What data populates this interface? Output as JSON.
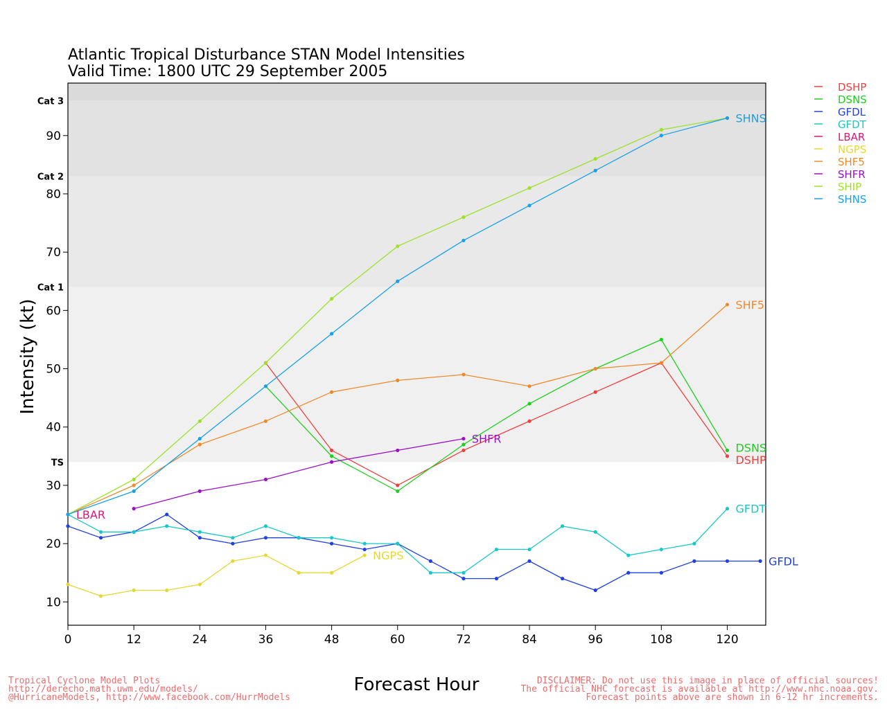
{
  "title_line1": "Atlantic Tropical Disturbance STAN Model Intensities",
  "title_line2": "Valid Time: 1800 UTC 29 September 2005",
  "footer_left": [
    "Tropical Cyclone Model Plots",
    "http://derecho.math.uwm.edu/models/",
    "@HurricaneModels, http://www.facebook.com/HurrModels"
  ],
  "footer_right": [
    "DISCLAIMER: Do not use this image in place of official sources!",
    "The official NHC forecast is available at http://www.nhc.noaa.gov.",
    "Forecast points above are shown in 6-12 hr increments."
  ],
  "chart_data": {
    "type": "line",
    "xlabel": "Forecast Hour",
    "ylabel": "Intensity (kt)",
    "xlim": [
      0,
      127
    ],
    "ylim": [
      6,
      99
    ],
    "x_ticks": [
      0,
      12,
      24,
      36,
      48,
      60,
      72,
      84,
      96,
      108,
      120
    ],
    "y_ticks": [
      10,
      20,
      30,
      40,
      50,
      60,
      70,
      80,
      90
    ],
    "grid": false,
    "legend_position": "right",
    "category_bands": [
      {
        "label": "TS",
        "from": 34,
        "to": 64,
        "color": "#f0f0f0"
      },
      {
        "label": "Cat 1",
        "from": 64,
        "to": 83,
        "color": "#e9e9e9"
      },
      {
        "label": "Cat 2",
        "from": 83,
        "to": 96,
        "color": "#e2e2e2"
      },
      {
        "label": "Cat 3",
        "from": 96,
        "to": 99,
        "color": "#dadada"
      }
    ],
    "series": [
      {
        "name": "DSHP",
        "color": "#ef4040",
        "x": [
          36,
          48,
          60,
          72,
          84,
          96,
          108,
          120
        ],
        "y": [
          51,
          36,
          30,
          36,
          41,
          46,
          51,
          35
        ],
        "end_label": "DSHP"
      },
      {
        "name": "DSNS",
        "color": "#1ecf1e",
        "x": [
          36,
          48,
          60,
          72,
          84,
          96,
          108,
          120
        ],
        "y": [
          47,
          35,
          29,
          37,
          44,
          50,
          55,
          36
        ],
        "end_label": "DSNS"
      },
      {
        "name": "GFDL",
        "color": "#2040e0",
        "x": [
          0,
          6,
          12,
          18,
          24,
          30,
          36,
          42,
          48,
          54,
          60,
          66,
          72,
          78,
          84,
          90,
          96,
          102,
          108,
          114,
          120,
          126
        ],
        "y": [
          23,
          21,
          22,
          25,
          21,
          20,
          21,
          21,
          20,
          19,
          20,
          17,
          14,
          14,
          17,
          14,
          12,
          15,
          15,
          17,
          17,
          17
        ],
        "end_label": "GFDL"
      },
      {
        "name": "GFDT",
        "color": "#18c8c8",
        "x": [
          0,
          6,
          12,
          18,
          24,
          30,
          36,
          42,
          48,
          54,
          60,
          66,
          72,
          78,
          84,
          90,
          96,
          102,
          108,
          114,
          120
        ],
        "y": [
          25,
          22,
          22,
          23,
          22,
          21,
          23,
          21,
          21,
          20,
          20,
          15,
          15,
          19,
          19,
          23,
          22,
          18,
          19,
          20,
          26
        ],
        "end_label": "GFDT"
      },
      {
        "name": "LBAR",
        "color": "#e8107a",
        "x": [
          0
        ],
        "y": [
          25
        ],
        "end_label": "LBAR"
      },
      {
        "name": "NGPS",
        "color": "#e6d832",
        "x": [
          0,
          6,
          12,
          18,
          24,
          30,
          36,
          42,
          48,
          54
        ],
        "y": [
          13,
          11,
          12,
          12,
          13,
          17,
          18,
          15,
          15,
          18
        ],
        "end_label": "NGPS"
      },
      {
        "name": "SHF5",
        "color": "#ee8a2a",
        "x": [
          0,
          12,
          24,
          36,
          48,
          60,
          72,
          84,
          96,
          108,
          120
        ],
        "y": [
          25,
          30,
          37,
          41,
          46,
          48,
          49,
          47,
          50,
          51,
          61
        ],
        "end_label": "SHF5"
      },
      {
        "name": "SHFR",
        "color": "#9a10c8",
        "x": [
          12,
          24,
          36,
          48,
          60,
          72
        ],
        "y": [
          26,
          29,
          31,
          34,
          36,
          38
        ],
        "end_label": "SHFR"
      },
      {
        "name": "SHIP",
        "color": "#9ee02a",
        "x": [
          0,
          12,
          24,
          36,
          48,
          60,
          72,
          84,
          96,
          108,
          120
        ],
        "y": [
          25,
          31,
          41,
          51,
          62,
          71,
          76,
          81,
          86,
          91,
          93
        ],
        "end_label": ""
      },
      {
        "name": "SHNS",
        "color": "#18a0e8",
        "x": [
          0,
          12,
          24,
          36,
          48,
          60,
          72,
          84,
          96,
          108,
          120
        ],
        "y": [
          25,
          29,
          38,
          47,
          56,
          65,
          72,
          78,
          84,
          90,
          93
        ],
        "end_label": "SHNS"
      }
    ]
  }
}
